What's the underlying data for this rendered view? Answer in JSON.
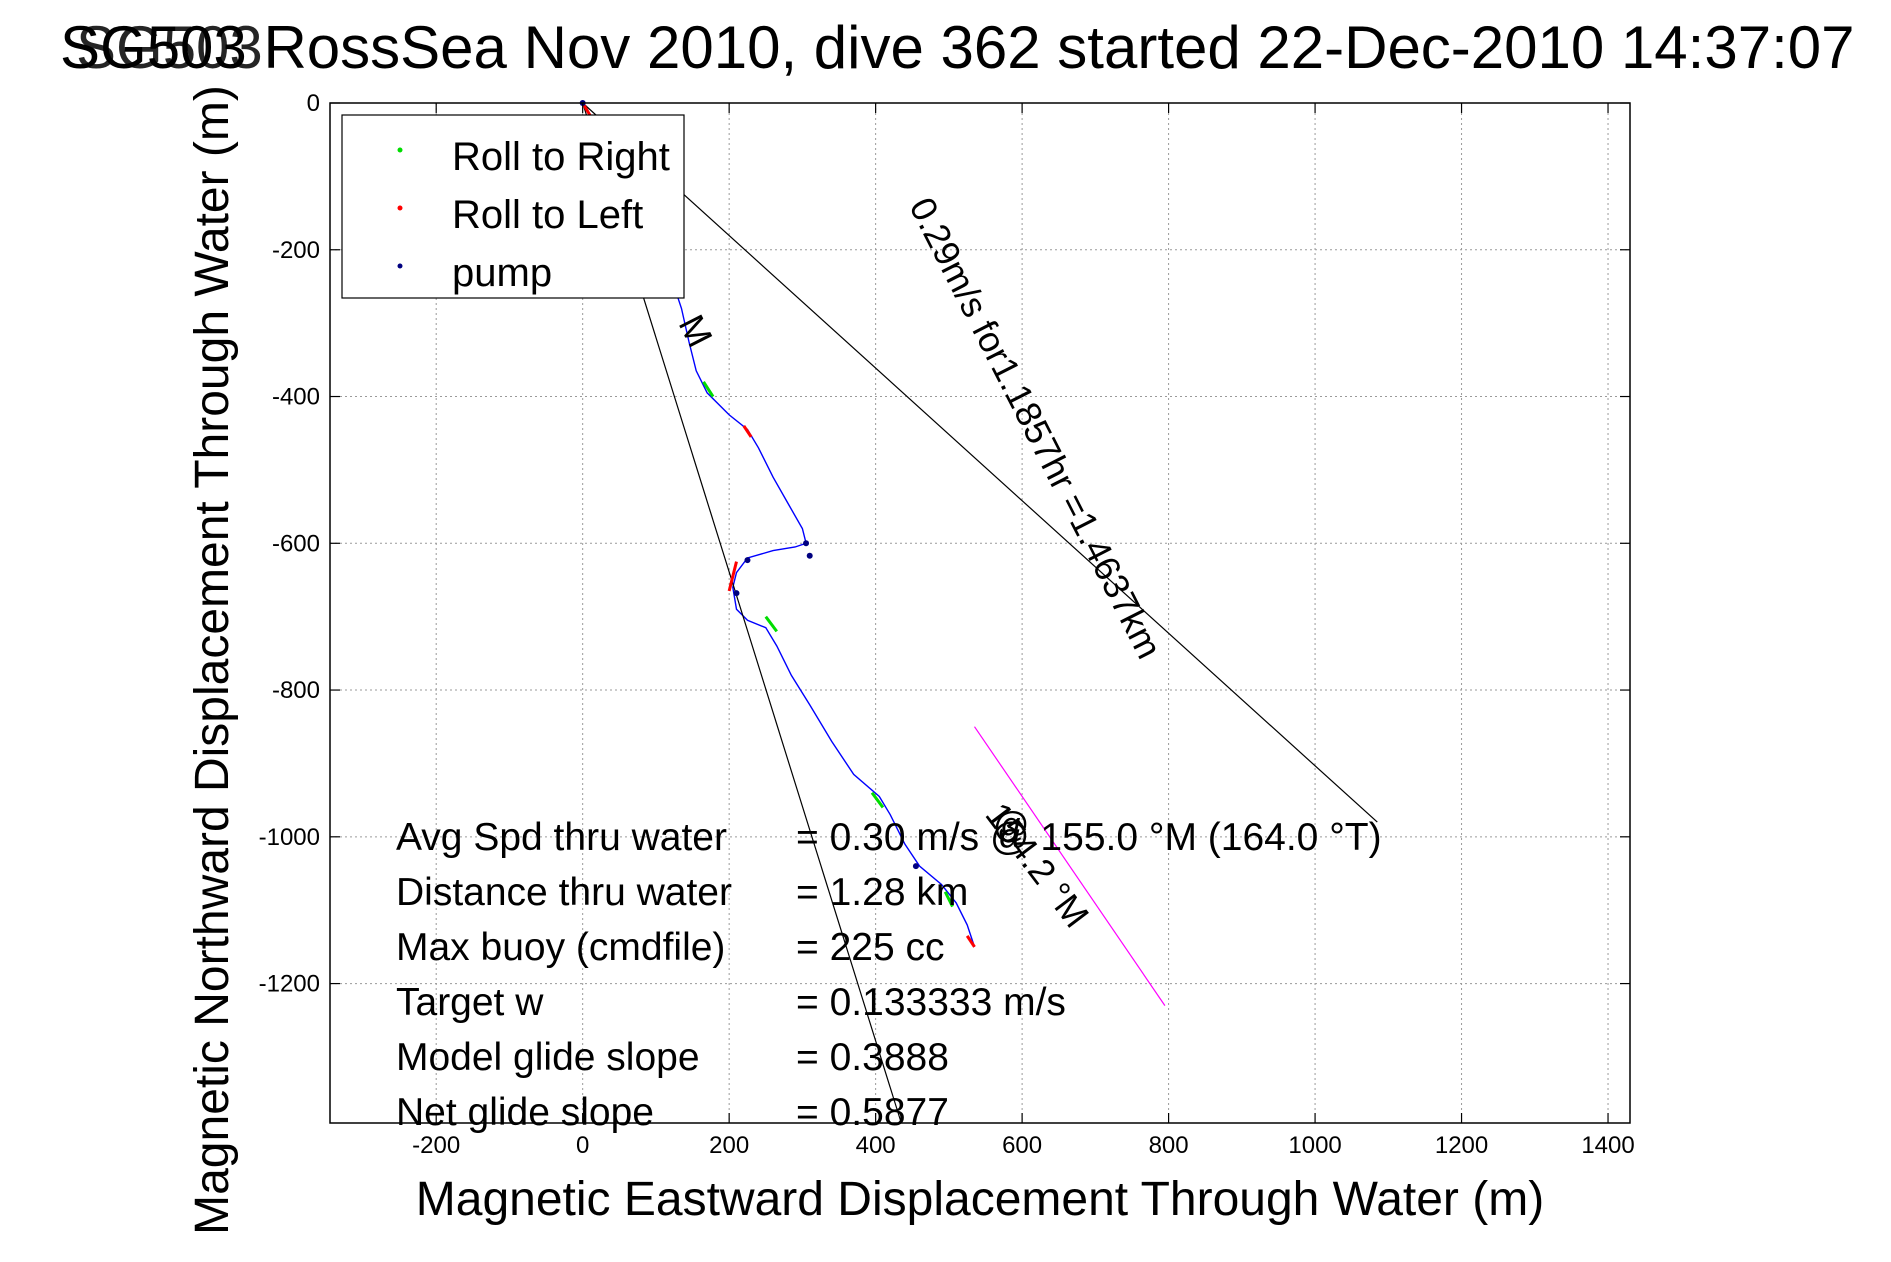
{
  "chart_data": {
    "type": "line",
    "title": "SG503 RossSea Nov 2010, dive 362 started 22-Dec-2010 14:37:07",
    "title_overlay": "SG503",
    "xlabel": "Magnetic Eastward Displacement Through Water (m)",
    "ylabel": "Magnetic Northward Displacement Through Water (m)",
    "xlim": [
      -345,
      1430
    ],
    "ylim": [
      -1390,
      0
    ],
    "xticks": [
      -200,
      0,
      200,
      400,
      600,
      800,
      1000,
      1200,
      1400
    ],
    "xtick_labels": [
      "-200",
      "0",
      "200",
      "400",
      "600",
      "800",
      "1000",
      "1200",
      "1400"
    ],
    "yticks": [
      0,
      -200,
      -400,
      -600,
      -800,
      -1000,
      -1200
    ],
    "ytick_labels": [
      "0",
      "-200",
      "-400",
      "-600",
      "-800",
      "-1000",
      "-1200"
    ],
    "grid": true,
    "legend_position": "top-left",
    "legend": [
      {
        "label": "Roll to Right",
        "color": "#00dd00",
        "marker": "dot"
      },
      {
        "label": "Roll to Left",
        "color": "#ff0000",
        "marker": "dot"
      },
      {
        "label": "pump",
        "color": "#000080",
        "marker": "dot"
      }
    ],
    "series": [
      {
        "id": "track",
        "color": "#0000ff",
        "x": [
          0,
          30,
          60,
          90,
          115,
          135,
          145,
          155,
          170,
          200,
          225,
          240,
          260,
          280,
          300,
          305,
          290,
          260,
          225,
          210,
          205,
          210,
          225,
          250,
          265,
          285,
          310,
          340,
          370,
          405,
          420,
          440,
          460,
          490,
          510,
          525,
          535
        ],
        "y": [
          0,
          -50,
          -100,
          -150,
          -220,
          -280,
          -325,
          -365,
          -395,
          -425,
          -445,
          -470,
          -510,
          -545,
          -580,
          -600,
          -605,
          -610,
          -620,
          -640,
          -660,
          -690,
          -705,
          -715,
          -740,
          -780,
          -820,
          -870,
          -915,
          -945,
          -970,
          -1010,
          -1040,
          -1065,
          -1090,
          -1120,
          -1150
        ]
      },
      {
        "id": "current-heading",
        "color": "#ff00ff",
        "x": [
          535,
          795
        ],
        "y": [
          -850,
          -1230
        ]
      },
      {
        "id": "heading-line-right",
        "color": "#000000",
        "x": [
          0,
          1085
        ],
        "y": [
          0,
          -980
        ]
      },
      {
        "id": "heading-line-left",
        "color": "#000000",
        "x": [
          0,
          435
        ],
        "y": [
          0,
          -1390
        ]
      }
    ],
    "segments_roll_right": [
      [
        [
          165,
          -380
        ],
        [
          178,
          -400
        ]
      ],
      [
        [
          250,
          -700
        ],
        [
          265,
          -720
        ]
      ],
      [
        [
          395,
          -940
        ],
        [
          410,
          -960
        ]
      ],
      [
        [
          495,
          -1075
        ],
        [
          505,
          -1095
        ]
      ]
    ],
    "segments_roll_left": [
      [
        [
          0,
          0
        ],
        [
          15,
          -25
        ]
      ],
      [
        [
          220,
          -440
        ],
        [
          230,
          -455
        ]
      ],
      [
        [
          210,
          -625
        ],
        [
          200,
          -665
        ]
      ],
      [
        [
          525,
          -1135
        ],
        [
          535,
          -1150
        ]
      ]
    ],
    "pump_points": [
      [
        0,
        0
      ],
      [
        305,
        -600
      ],
      [
        310,
        -617
      ],
      [
        225,
        -623
      ],
      [
        210,
        -668
      ],
      [
        455,
        -1040
      ]
    ],
    "annotations": [
      {
        "text": "0.29m/s for1.1857hr =1.4637km",
        "x": 445,
        "y": -140,
        "angle": 63
      },
      {
        "text": "154.2 °M",
        "x": 548,
        "y": -970,
        "angle": 53
      },
      {
        "text": "M",
        "x": 130,
        "y": -300,
        "angle": 63
      },
      {
        "text": "@",
        "x": 560,
        "y": -1000,
        "angle": 0
      }
    ],
    "stats": [
      {
        "label": "Avg Spd thru water",
        "value": "=  0.30 m/s @  155.0 °M (164.0 °T)"
      },
      {
        "label": "Distance thru water",
        "value": "=  1.28 km"
      },
      {
        "label": "Max buoy (cmdfile)",
        "value": "= 225 cc"
      },
      {
        "label": "Target w",
        "value": "= 0.133333 m/s"
      },
      {
        "label": "Model glide slope",
        "value": "= 0.3888"
      },
      {
        "label": "Net glide slope",
        "value": "= 0.5877"
      }
    ]
  }
}
